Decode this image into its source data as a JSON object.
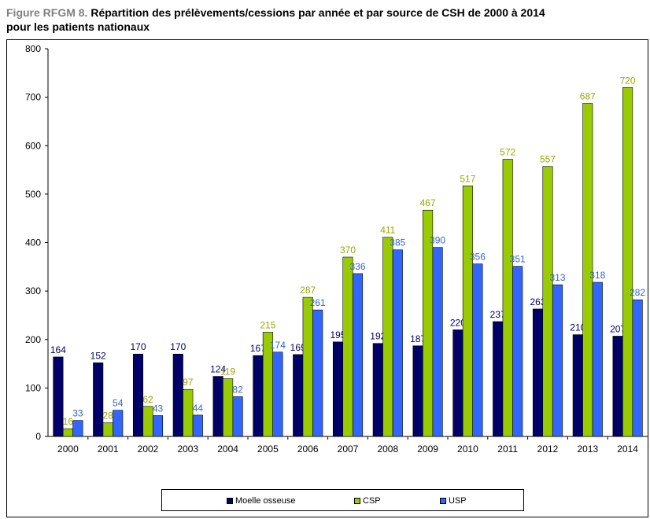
{
  "title": {
    "prefix": "Figure RFGM 8.",
    "main": " Répartition des prélèvements/cessions par année et par source de CSH de 2000 à 2014",
    "line2": "pour les patients nationaux"
  },
  "colors": {
    "moelle": "#000066",
    "csp": "#99cc00",
    "usp": "#3366ff",
    "label_moelle": "#000066",
    "label_csp": "#99aa00",
    "label_usp": "#3366cc"
  },
  "chart_data": {
    "type": "bar",
    "categories": [
      "2000",
      "2001",
      "2002",
      "2003",
      "2004",
      "2005",
      "2006",
      "2007",
      "2008",
      "2009",
      "2010",
      "2011",
      "2012",
      "2013",
      "2014"
    ],
    "series": [
      {
        "name": "Moelle osseuse",
        "values": [
          164,
          152,
          170,
          170,
          124,
          167,
          169,
          195,
          192,
          187,
          220,
          237,
          263,
          210,
          207
        ]
      },
      {
        "name": "CSP",
        "values": [
          16,
          28,
          62,
          97,
          119,
          215,
          287,
          370,
          411,
          467,
          517,
          572,
          557,
          687,
          720
        ]
      },
      {
        "name": "USP",
        "values": [
          33,
          54,
          43,
          44,
          82,
          174,
          261,
          336,
          385,
          390,
          356,
          351,
          313,
          318,
          282
        ]
      }
    ],
    "ylim": [
      0,
      800
    ],
    "yticks": [
      "0",
      "100",
      "200",
      "300",
      "400",
      "500",
      "600",
      "700",
      "800"
    ],
    "xlabel": "",
    "ylabel": "",
    "grid": false,
    "legend": "bottom"
  }
}
